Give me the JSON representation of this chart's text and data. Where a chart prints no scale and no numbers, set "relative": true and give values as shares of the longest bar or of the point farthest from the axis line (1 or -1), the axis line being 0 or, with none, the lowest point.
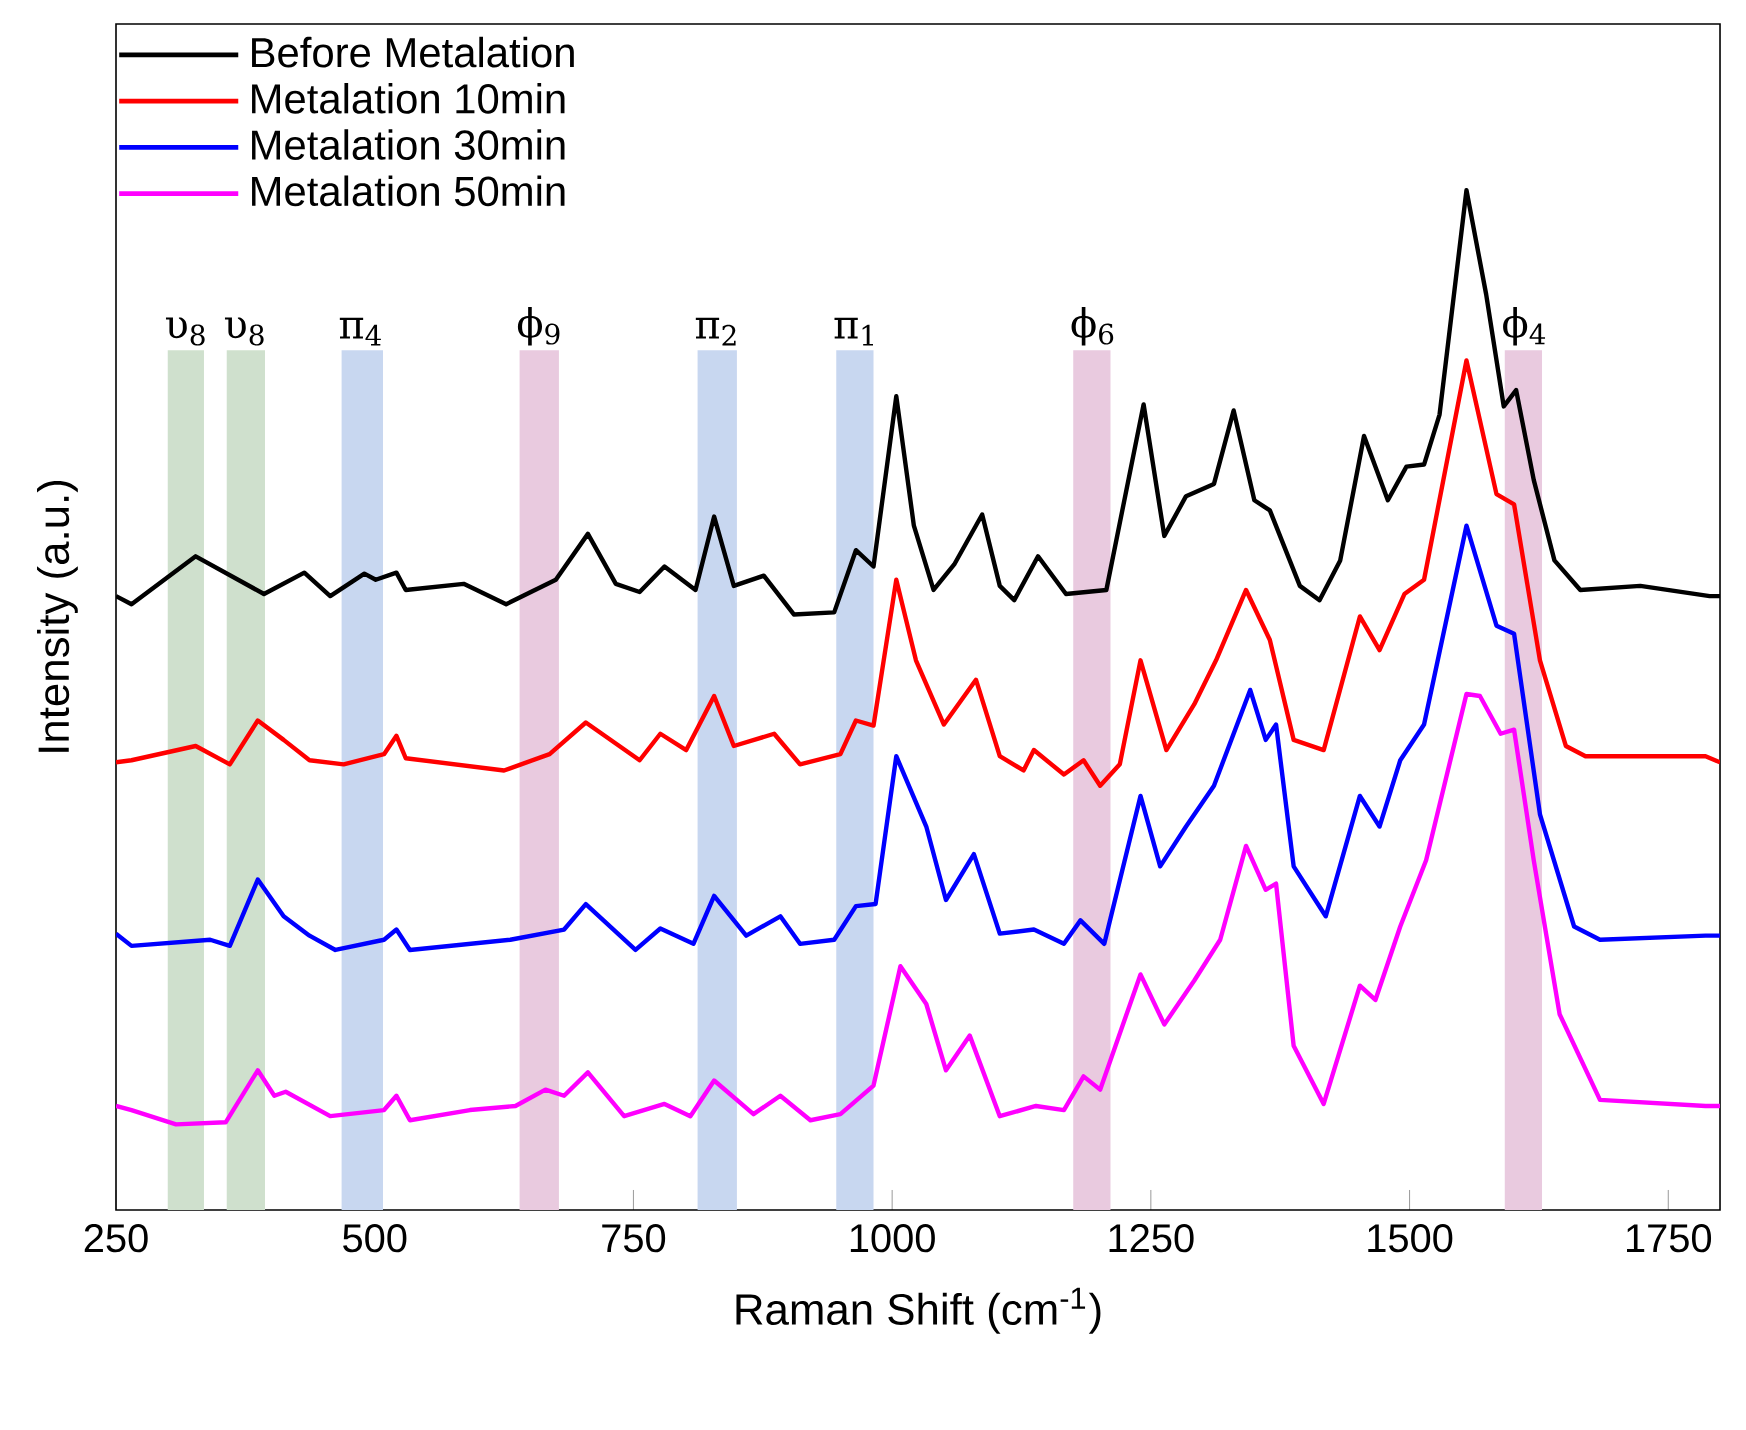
{
  "chart_data": {
    "type": "line",
    "xlabel": "Raman Shift (cm$^{-1}$)",
    "ylabel": "Intensity (a.u.)",
    "relative": true,
    "xlim": [
      250,
      1800
    ],
    "xticks": [
      250,
      500,
      750,
      1000,
      1250,
      1500,
      1750
    ],
    "legend": "top left",
    "grid": false,
    "series": [
      {
        "name": "Before Metalation",
        "color": "#000000",
        "x": [
          250,
          265,
          327,
          393,
          432,
          457,
          490,
          501,
          521,
          530,
          586,
          627,
          675,
          706,
          733,
          756,
          780,
          810,
          828,
          847,
          876,
          905,
          944,
          965,
          982,
          1004,
          1021,
          1040,
          1060,
          1087,
          1104,
          1118,
          1141,
          1168,
          1207,
          1243,
          1263,
          1284,
          1311,
          1330,
          1350,
          1365,
          1394,
          1413,
          1433,
          1456,
          1479,
          1497,
          1514,
          1529,
          1555,
          1574,
          1591,
          1603,
          1620,
          1640,
          1665,
          1723,
          1790,
          1800
        ],
        "values": [
          0.602,
          0.594,
          0.641,
          0.604,
          0.625,
          0.602,
          0.624,
          0.618,
          0.625,
          0.608,
          0.614,
          0.594,
          0.618,
          0.663,
          0.614,
          0.606,
          0.631,
          0.608,
          0.68,
          0.612,
          0.622,
          0.584,
          0.586,
          0.647,
          0.631,
          0.798,
          0.671,
          0.608,
          0.633,
          0.682,
          0.612,
          0.598,
          0.641,
          0.604,
          0.608,
          0.79,
          0.661,
          0.7,
          0.712,
          0.784,
          0.696,
          0.686,
          0.612,
          0.598,
          0.637,
          0.759,
          0.696,
          0.729,
          0.731,
          0.78,
          1,
          0.898,
          0.788,
          0.804,
          0.716,
          0.637,
          0.608,
          0.612,
          0.602,
          0.602
        ]
      },
      {
        "name": "Metalation 10min",
        "color": "#ff0000",
        "x": [
          250,
          265,
          327,
          360,
          387,
          412,
          437,
          470,
          509,
          521,
          530,
          625,
          669,
          704,
          756,
          776,
          801,
          828,
          847,
          886,
          911,
          950,
          965,
          982,
          1004,
          1023,
          1050,
          1081,
          1104,
          1127,
          1137,
          1166,
          1185,
          1201,
          1220,
          1240,
          1265,
          1292,
          1313,
          1342,
          1365,
          1388,
          1417,
          1452,
          1471,
          1495,
          1514,
          1555,
          1584,
          1601,
          1626,
          1651,
          1670,
          1786,
          1800
        ],
        "values": [
          0.439,
          0.441,
          0.455,
          0.437,
          0.48,
          0.461,
          0.441,
          0.437,
          0.447,
          0.465,
          0.443,
          0.431,
          0.447,
          0.478,
          0.441,
          0.467,
          0.451,
          0.504,
          0.455,
          0.467,
          0.437,
          0.447,
          0.48,
          0.475,
          0.618,
          0.539,
          0.476,
          0.52,
          0.445,
          0.431,
          0.451,
          0.427,
          0.441,
          0.416,
          0.437,
          0.539,
          0.451,
          0.496,
          0.539,
          0.608,
          0.559,
          0.461,
          0.451,
          0.582,
          0.549,
          0.604,
          0.618,
          0.833,
          0.702,
          0.692,
          0.539,
          0.455,
          0.445,
          0.445,
          0.439
        ]
      },
      {
        "name": "Metalation 30min",
        "color": "#0000ff",
        "x": [
          250,
          265,
          341,
          360,
          387,
          412,
          437,
          462,
          509,
          521,
          534,
          631,
          683,
          704,
          752,
          776,
          808,
          828,
          859,
          892,
          911,
          944,
          965,
          984,
          1004,
          1033,
          1052,
          1079,
          1104,
          1137,
          1166,
          1182,
          1205,
          1240,
          1259,
          1284,
          1311,
          1346,
          1361,
          1371,
          1388,
          1419,
          1452,
          1471,
          1491,
          1514,
          1555,
          1584,
          1601,
          1626,
          1659,
          1684,
          1786,
          1800
        ],
        "values": [
          0.271,
          0.259,
          0.265,
          0.259,
          0.324,
          0.288,
          0.269,
          0.255,
          0.265,
          0.275,
          0.255,
          0.265,
          0.275,
          0.3,
          0.255,
          0.276,
          0.261,
          0.308,
          0.269,
          0.288,
          0.261,
          0.265,
          0.298,
          0.3,
          0.445,
          0.376,
          0.304,
          0.349,
          0.271,
          0.275,
          0.261,
          0.284,
          0.261,
          0.406,
          0.337,
          0.376,
          0.416,
          0.51,
          0.461,
          0.476,
          0.337,
          0.288,
          0.406,
          0.376,
          0.441,
          0.476,
          0.671,
          0.573,
          0.565,
          0.388,
          0.278,
          0.265,
          0.269,
          0.269
        ]
      },
      {
        "name": "Metalation 50min",
        "color": "#ff00ff",
        "x": [
          250,
          265,
          308,
          356,
          387,
          403,
          414,
          457,
          509,
          521,
          534,
          592,
          636,
          665,
          683,
          706,
          741,
          780,
          805,
          828,
          866,
          892,
          921,
          950,
          982,
          1008,
          1033,
          1052,
          1075,
          1104,
          1139,
          1166,
          1185,
          1201,
          1240,
          1263,
          1292,
          1317,
          1342,
          1361,
          1371,
          1388,
          1417,
          1452,
          1467,
          1491,
          1516,
          1555,
          1568,
          1588,
          1601,
          1620,
          1645,
          1684,
          1786,
          1800
        ],
        "values": [
          0.102,
          0.098,
          0.084,
          0.086,
          0.137,
          0.112,
          0.116,
          0.092,
          0.098,
          0.112,
          0.088,
          0.098,
          0.102,
          0.118,
          0.112,
          0.135,
          0.092,
          0.104,
          0.092,
          0.127,
          0.094,
          0.112,
          0.088,
          0.094,
          0.122,
          0.239,
          0.202,
          0.137,
          0.171,
          0.092,
          0.102,
          0.098,
          0.131,
          0.118,
          0.231,
          0.182,
          0.225,
          0.265,
          0.357,
          0.314,
          0.32,
          0.161,
          0.104,
          0.22,
          0.206,
          0.278,
          0.343,
          0.506,
          0.504,
          0.467,
          0.471,
          0.343,
          0.192,
          0.108,
          0.102,
          0.102
        ]
      }
    ],
    "bands": [
      {
        "axis": "x",
        "from": 300,
        "to": 335,
        "label": "υ$_{8}$",
        "color": "#cfe0cd"
      },
      {
        "axis": "x",
        "from": 357,
        "to": 394,
        "label": "υ$_{8}$",
        "color": "#cfe0cd"
      },
      {
        "axis": "x",
        "from": 468,
        "to": 508,
        "label": "π$_{4}$",
        "color": "#c8d7f0"
      },
      {
        "axis": "x",
        "from": 640,
        "to": 678,
        "label": "ϕ$_{9}$",
        "color": "#e9cadf"
      },
      {
        "axis": "x",
        "from": 812,
        "to": 850,
        "label": "π$_{2}$",
        "color": "#c8d7f0"
      },
      {
        "axis": "x",
        "from": 946,
        "to": 982,
        "label": "π$_{1}$",
        "color": "#c8d7f0"
      },
      {
        "axis": "x",
        "from": 1175,
        "to": 1211,
        "label": "ϕ$_{6}$",
        "color": "#e9cadf"
      },
      {
        "axis": "x",
        "from": 1592,
        "to": 1628,
        "label": "ϕ$_{4}$",
        "color": "#e9cadf"
      }
    ]
  }
}
